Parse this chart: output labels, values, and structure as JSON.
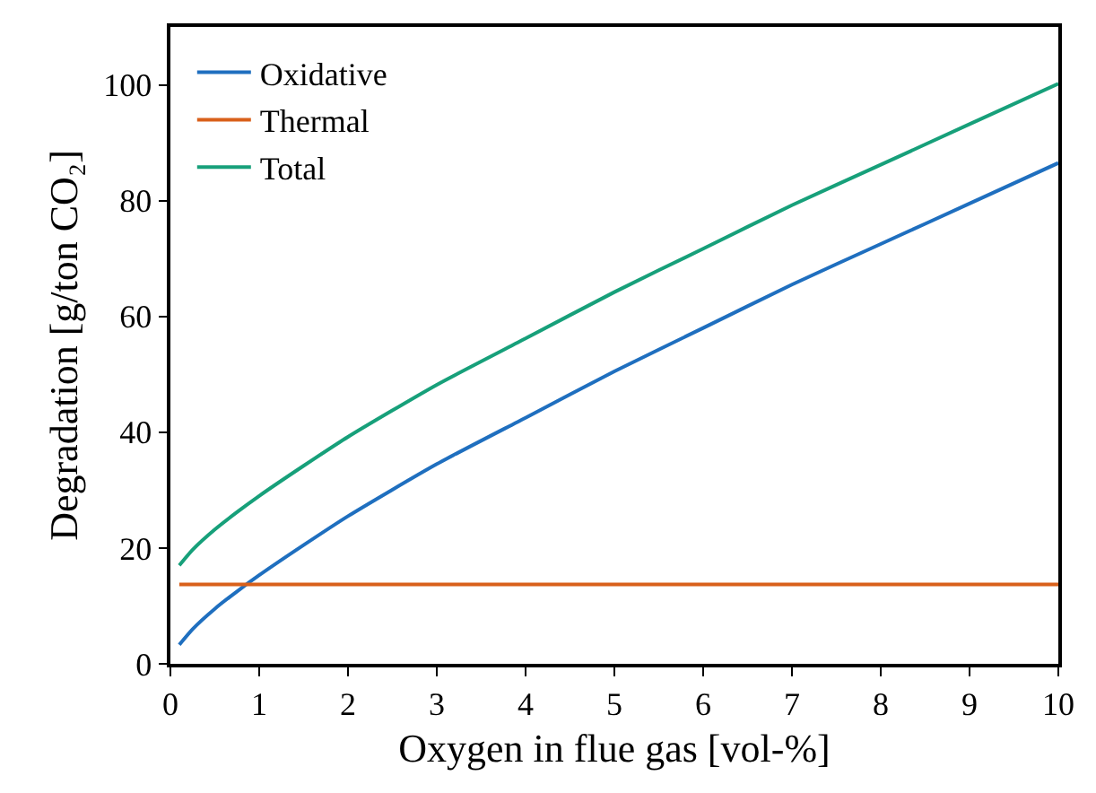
{
  "chart_data": {
    "type": "line",
    "xlabel": "Oxygen in flue gas [vol-%]",
    "ylabel": "Degradation [g/ton CO₂]",
    "x": [
      0.1,
      0.25,
      0.5,
      0.75,
      1,
      1.5,
      2,
      3,
      4,
      5,
      6,
      7,
      8,
      9,
      10
    ],
    "series": [
      {
        "name": "Oxidative",
        "color": "#1f6fbf",
        "values": [
          3.3,
          6,
          9.5,
          12.5,
          15.3,
          20.5,
          25.5,
          34.5,
          42.5,
          50.5,
          58,
          65.5,
          72.5,
          79.5,
          86.5
        ]
      },
      {
        "name": "Thermal",
        "color": "#d9601a",
        "values": [
          13.7,
          13.7,
          13.7,
          13.7,
          13.7,
          13.7,
          13.7,
          13.7,
          13.7,
          13.7,
          13.7,
          13.7,
          13.7,
          13.7,
          13.7
        ]
      },
      {
        "name": "Total",
        "color": "#17a07a",
        "values": [
          17,
          19.7,
          23.2,
          26.2,
          29,
          34.2,
          39.2,
          48.2,
          56.2,
          64.2,
          71.7,
          79.2,
          86.2,
          93.2,
          100.2
        ]
      }
    ],
    "xlim": [
      0,
      10
    ],
    "ylim": [
      0,
      110
    ],
    "xticks": [
      0,
      1,
      2,
      3,
      4,
      5,
      6,
      7,
      8,
      9,
      10
    ],
    "yticks": [
      0,
      20,
      40,
      60,
      80,
      100
    ],
    "legend": "top left",
    "marker": "none",
    "line_style": "solid"
  }
}
